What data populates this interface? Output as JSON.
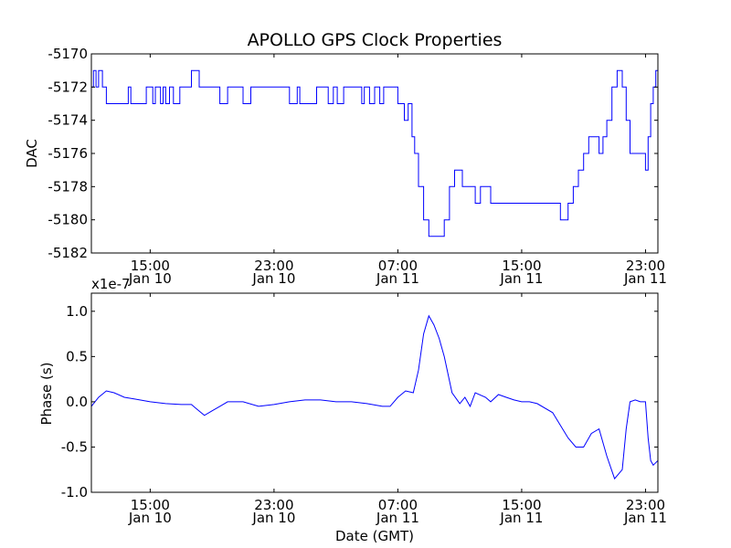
{
  "chart_data": [
    {
      "type": "line",
      "title": "APOLLO GPS Clock Properties",
      "xlabel": "",
      "ylabel": "DAC",
      "xlim": [
        "2010-01-10 11:12",
        "2010-01-11 23:48"
      ],
      "ylim": [
        -5182,
        -5170
      ],
      "yticks": [
        -5182,
        -5180,
        -5178,
        -5176,
        -5174,
        -5172,
        -5170
      ],
      "ytick_labels": [
        "-5182",
        "-5180",
        "-5178",
        "-5176",
        "-5174",
        "-5172",
        "-5170"
      ],
      "xticks": [
        {
          "t": "2010-01-10 15:00",
          "time": "15:00",
          "date": "Jan 10"
        },
        {
          "t": "2010-01-10 23:00",
          "time": "23:00",
          "date": "Jan 10"
        },
        {
          "t": "2010-01-11 07:00",
          "time": "07:00",
          "date": "Jan 11"
        },
        {
          "t": "2010-01-11 15:00",
          "time": "15:00",
          "date": "Jan 11"
        },
        {
          "t": "2010-01-11 23:00",
          "time": "23:00",
          "date": "Jan 11"
        }
      ],
      "line_color": "#0000ff",
      "step": true,
      "series": [
        {
          "x": [
            "2010-01-10 11:12",
            "2010-01-10 11:20",
            "2010-01-10 11:30",
            "2010-01-10 11:40",
            "2010-01-10 11:55",
            "2010-01-10 12:10",
            "2010-01-10 12:30",
            "2010-01-10 13:00",
            "2010-01-10 13:35",
            "2010-01-10 13:45",
            "2010-01-10 14:20",
            "2010-01-10 14:45",
            "2010-01-10 15:10",
            "2010-01-10 15:20",
            "2010-01-10 15:40",
            "2010-01-10 15:50",
            "2010-01-10 16:00",
            "2010-01-10 16:15",
            "2010-01-10 16:30",
            "2010-01-10 16:45",
            "2010-01-10 16:55",
            "2010-01-10 17:30",
            "2010-01-10 17:40",
            "2010-01-10 18:10",
            "2010-01-10 18:30",
            "2010-01-10 19:00",
            "2010-01-10 19:30",
            "2010-01-10 20:00",
            "2010-01-10 20:45",
            "2010-01-10 21:00",
            "2010-01-10 21:30",
            "2010-01-10 21:40",
            "2010-01-10 22:00",
            "2010-01-10 22:30",
            "2010-01-10 23:00",
            "2010-01-10 23:40",
            "2010-01-11 00:00",
            "2010-01-11 00:30",
            "2010-01-11 00:40",
            "2010-01-11 01:00",
            "2010-01-11 01:45",
            "2010-01-11 01:55",
            "2010-01-11 02:30",
            "2010-01-11 02:50",
            "2010-01-11 03:05",
            "2010-01-11 03:30",
            "2010-01-11 04:00",
            "2010-01-11 04:30",
            "2010-01-11 04:40",
            "2010-01-11 04:50",
            "2010-01-11 05:10",
            "2010-01-11 05:30",
            "2010-01-11 05:50",
            "2010-01-11 06:05",
            "2010-01-11 06:25",
            "2010-01-11 06:40",
            "2010-01-11 07:00",
            "2010-01-11 07:15",
            "2010-01-11 07:25",
            "2010-01-11 07:40",
            "2010-01-11 07:55",
            "2010-01-11 08:05",
            "2010-01-11 08:20",
            "2010-01-11 08:40",
            "2010-01-11 09:00",
            "2010-01-11 09:10",
            "2010-01-11 09:20",
            "2010-01-11 09:30",
            "2010-01-11 09:40",
            "2010-01-11 09:50",
            "2010-01-11 10:00",
            "2010-01-11 10:20",
            "2010-01-11 10:40",
            "2010-01-11 11:00",
            "2010-01-11 11:10",
            "2010-01-11 11:20",
            "2010-01-11 11:40",
            "2010-01-11 12:00",
            "2010-01-11 12:20",
            "2010-01-11 12:40",
            "2010-01-11 13:00",
            "2010-01-11 13:20",
            "2010-01-11 13:40",
            "2010-01-11 13:50",
            "2010-01-11 14:00",
            "2010-01-11 14:30",
            "2010-01-11 15:00",
            "2010-01-11 15:30",
            "2010-01-11 16:00",
            "2010-01-11 16:10",
            "2010-01-11 16:30",
            "2010-01-11 17:00",
            "2010-01-11 17:30",
            "2010-01-11 18:00",
            "2010-01-11 18:20",
            "2010-01-11 18:40",
            "2010-01-11 19:00",
            "2010-01-11 19:20",
            "2010-01-11 19:40",
            "2010-01-11 20:00",
            "2010-01-11 20:15",
            "2010-01-11 20:30",
            "2010-01-11 20:50",
            "2010-01-11 21:10",
            "2010-01-11 21:30",
            "2010-01-11 21:45",
            "2010-01-11 22:00",
            "2010-01-11 22:20",
            "2010-01-11 22:40",
            "2010-01-11 23:00",
            "2010-01-11 23:10",
            "2010-01-11 23:20",
            "2010-01-11 23:30",
            "2010-01-11 23:40"
          ],
          "y": [
            -5172,
            -5171,
            -5172,
            -5171,
            -5172,
            -5173,
            -5173,
            -5173,
            -5172,
            -5173,
            -5173,
            -5172,
            -5173,
            -5172,
            -5173,
            -5172,
            -5173,
            -5172,
            -5173,
            -5173,
            -5172,
            -5172,
            -5171,
            -5172,
            -5172,
            -5172,
            -5173,
            -5172,
            -5172,
            -5173,
            -5172,
            -5172,
            -5172,
            -5172,
            -5172,
            -5172,
            -5173,
            -5172,
            -5173,
            -5173,
            -5172,
            -5172,
            -5173,
            -5172,
            -5173,
            -5172,
            -5172,
            -5172,
            -5173,
            -5172,
            -5173,
            -5172,
            -5173,
            -5172,
            -5172,
            -5172,
            -5173,
            -5173,
            -5174,
            -5173,
            -5175,
            -5176,
            -5178,
            -5180,
            -5181,
            -5181,
            -5181,
            -5181,
            -5181,
            -5181,
            -5180,
            -5178,
            -5177,
            -5177,
            -5178,
            -5178,
            -5178,
            -5179,
            -5178,
            -5178,
            -5179,
            -5179,
            -5179,
            -5179,
            -5179,
            -5179,
            -5179,
            -5179,
            -5179,
            -5179,
            -5179,
            -5179,
            -5180,
            -5179,
            -5178,
            -5177,
            -5176,
            -5175,
            -5175,
            -5176,
            -5175,
            -5174,
            -5172,
            -5171,
            -5172,
            -5174,
            -5176,
            -5176,
            -5176,
            -5177,
            -5175,
            -5173,
            -5172,
            -5171
          ]
        }
      ]
    },
    {
      "type": "line",
      "title": "",
      "xlabel": "Date (GMT)",
      "ylabel": "Phase (s)",
      "y_multiplier": "x1e-7",
      "xlim": [
        "2010-01-10 11:12",
        "2010-01-11 23:48"
      ],
      "ylim": [
        -1.0,
        1.2
      ],
      "yticks": [
        -1.0,
        -0.5,
        0.0,
        0.5,
        1.0
      ],
      "ytick_labels": [
        "-1.0",
        "-0.5",
        "0.0",
        "0.5",
        "1.0"
      ],
      "xticks": [
        {
          "t": "2010-01-10 15:00",
          "time": "15:00",
          "date": "Jan 10"
        },
        {
          "t": "2010-01-10 23:00",
          "time": "23:00",
          "date": "Jan 10"
        },
        {
          "t": "2010-01-11 07:00",
          "time": "07:00",
          "date": "Jan 11"
        },
        {
          "t": "2010-01-11 15:00",
          "time": "15:00",
          "date": "Jan 11"
        },
        {
          "t": "2010-01-11 23:00",
          "time": "23:00",
          "date": "Jan 11"
        }
      ],
      "line_color": "#0000ff",
      "series": [
        {
          "x": [
            "2010-01-10 11:12",
            "2010-01-10 11:40",
            "2010-01-10 12:10",
            "2010-01-10 12:40",
            "2010-01-10 13:20",
            "2010-01-10 14:00",
            "2010-01-10 15:00",
            "2010-01-10 16:00",
            "2010-01-10 17:00",
            "2010-01-10 17:40",
            "2010-01-10 18:00",
            "2010-01-10 18:30",
            "2010-01-10 19:00",
            "2010-01-10 19:30",
            "2010-01-10 20:00",
            "2010-01-10 21:00",
            "2010-01-10 22:00",
            "2010-01-10 23:00",
            "2010-01-11 00:00",
            "2010-01-11 01:00",
            "2010-01-11 02:00",
            "2010-01-11 03:00",
            "2010-01-11 04:00",
            "2010-01-11 05:00",
            "2010-01-11 06:00",
            "2010-01-11 06:30",
            "2010-01-11 07:00",
            "2010-01-11 07:30",
            "2010-01-11 08:00",
            "2010-01-11 08:20",
            "2010-01-11 08:40",
            "2010-01-11 09:00",
            "2010-01-11 09:20",
            "2010-01-11 09:40",
            "2010-01-11 10:00",
            "2010-01-11 10:30",
            "2010-01-11 11:00",
            "2010-01-11 11:20",
            "2010-01-11 11:40",
            "2010-01-11 12:00",
            "2010-01-11 12:40",
            "2010-01-11 13:00",
            "2010-01-11 13:30",
            "2010-01-11 14:00",
            "2010-01-11 14:30",
            "2010-01-11 15:00",
            "2010-01-11 15:30",
            "2010-01-11 16:00",
            "2010-01-11 17:00",
            "2010-01-11 18:00",
            "2010-01-11 18:30",
            "2010-01-11 19:00",
            "2010-01-11 19:30",
            "2010-01-11 20:00",
            "2010-01-11 20:30",
            "2010-01-11 21:00",
            "2010-01-11 21:30",
            "2010-01-11 21:45",
            "2010-01-11 22:00",
            "2010-01-11 22:20",
            "2010-01-11 22:40",
            "2010-01-11 23:00",
            "2010-01-11 23:10",
            "2010-01-11 23:20",
            "2010-01-11 23:30",
            "2010-01-11 23:48"
          ],
          "y": [
            -0.05,
            0.05,
            0.12,
            0.1,
            0.05,
            0.03,
            0.0,
            -0.02,
            -0.03,
            -0.03,
            -0.08,
            -0.15,
            -0.1,
            -0.05,
            0.0,
            0.0,
            -0.05,
            -0.03,
            0.0,
            0.02,
            0.02,
            0.0,
            0.0,
            -0.02,
            -0.05,
            -0.05,
            0.05,
            0.12,
            0.1,
            0.35,
            0.75,
            0.95,
            0.85,
            0.7,
            0.5,
            0.1,
            -0.02,
            0.05,
            -0.05,
            0.1,
            0.05,
            0.0,
            0.08,
            0.05,
            0.02,
            0.0,
            0.0,
            -0.02,
            -0.12,
            -0.4,
            -0.5,
            -0.5,
            -0.35,
            -0.3,
            -0.6,
            -0.85,
            -0.75,
            -0.3,
            0.0,
            0.02,
            0.0,
            0.0,
            -0.4,
            -0.65,
            -0.7,
            -0.65
          ]
        }
      ]
    }
  ]
}
